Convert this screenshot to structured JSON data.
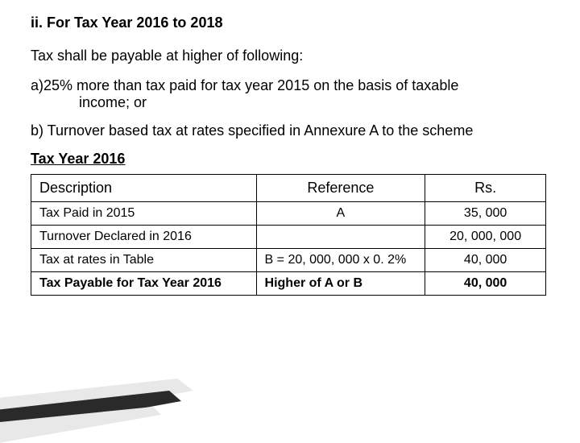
{
  "heading": "ii. For Tax Year 2016 to 2018",
  "intro": "Tax shall be payable at higher of following:",
  "item_a_lead": "a)  ",
  "item_a_line1": "25% more than tax paid for tax year 2015 on the basis of taxable",
  "item_a_line2": "income; or",
  "item_b": "b)  Turnover based tax at rates specified in Annexure A to the scheme",
  "subhead": "Tax Year 2016",
  "table": {
    "headers": {
      "desc": "Description",
      "ref": "Reference",
      "rs": "Rs."
    },
    "rows": [
      {
        "desc": "Tax Paid in 2015",
        "ref": "A",
        "rs": "35, 000",
        "ref_align": "center",
        "bold": false
      },
      {
        "desc": "Turnover Declared in 2016",
        "ref": "",
        "rs": "20, 000, 000",
        "ref_align": "center",
        "bold": false
      },
      {
        "desc": "Tax at rates in Table",
        "ref": "B  = 20, 000, 000 x 0. 2%",
        "rs": "40, 000",
        "ref_align": "left",
        "bold": false
      },
      {
        "desc": "Tax Payable for Tax Year 2016",
        "ref": "Higher of A or B",
        "rs": "40, 000",
        "ref_align": "left",
        "bold": true
      }
    ]
  },
  "colors": {
    "background": "#ffffff",
    "text": "#000000",
    "table_border": "#000000",
    "swoosh_dark": "#2a2a2a",
    "swoosh_light": "#e8e8e8"
  }
}
